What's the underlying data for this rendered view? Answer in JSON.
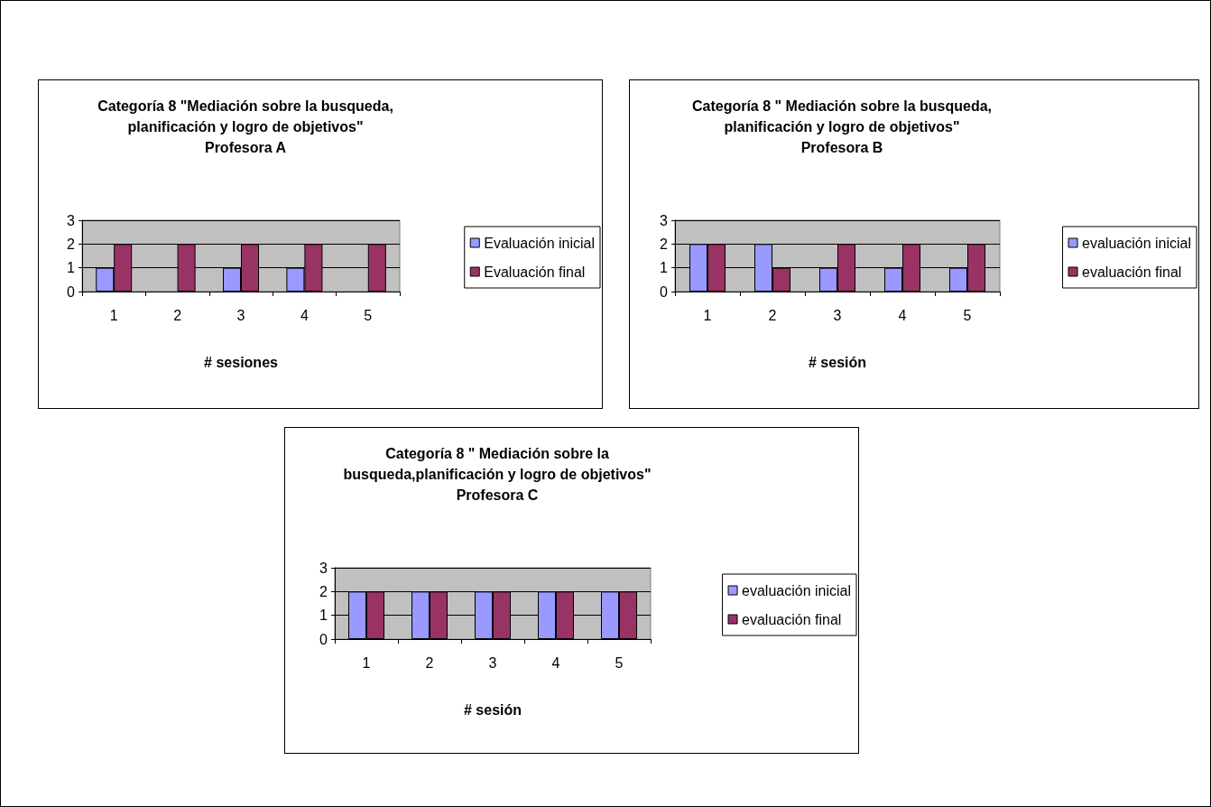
{
  "chart_data": [
    {
      "type": "bar",
      "title": "Categoría 8 \"Mediación sobre la busqueda,\nplanificación y logro de objetivos\"\nProfesora A",
      "xlabel": "# sesiones",
      "categories": [
        "1",
        "2",
        "3",
        "4",
        "5"
      ],
      "series": [
        {
          "name": "Evaluación inicial",
          "color": "#9999ff",
          "values": [
            1,
            null,
            1,
            1,
            null
          ]
        },
        {
          "name": "Evaluación final",
          "color": "#993366",
          "values": [
            2,
            2,
            2,
            2,
            2
          ]
        }
      ],
      "ylim": [
        0,
        3
      ],
      "yticks": [
        0,
        1,
        2,
        3
      ],
      "grid": "y",
      "legend": "right"
    },
    {
      "type": "bar",
      "title": "Categoría 8 \" Mediación sobre la busqueda,\nplanificación y logro de objetivos\"\nProfesora B",
      "xlabel": "# sesión",
      "categories": [
        "1",
        "2",
        "3",
        "4",
        "5"
      ],
      "series": [
        {
          "name": "evaluación inicial",
          "color": "#9999ff",
          "values": [
            2,
            2,
            1,
            1,
            1
          ]
        },
        {
          "name": "evaluación final",
          "color": "#993366",
          "values": [
            2,
            1,
            2,
            2,
            2
          ]
        }
      ],
      "ylim": [
        0,
        3
      ],
      "yticks": [
        0,
        1,
        2,
        3
      ],
      "grid": "y",
      "legend": "right"
    },
    {
      "type": "bar",
      "title": "Categoría 8 \" Mediación sobre la\nbusqueda,planificación y logro de objetivos\"\nProfesora C",
      "xlabel": "# sesión",
      "categories": [
        "1",
        "2",
        "3",
        "4",
        "5"
      ],
      "series": [
        {
          "name": "evaluación inicial",
          "color": "#9999ff",
          "values": [
            2,
            2,
            2,
            2,
            2
          ]
        },
        {
          "name": "evaluación final",
          "color": "#993366",
          "values": [
            2,
            2,
            2,
            2,
            2
          ]
        }
      ],
      "ylim": [
        0,
        3
      ],
      "yticks": [
        0,
        1,
        2,
        3
      ],
      "grid": "y",
      "legend": "right"
    }
  ]
}
